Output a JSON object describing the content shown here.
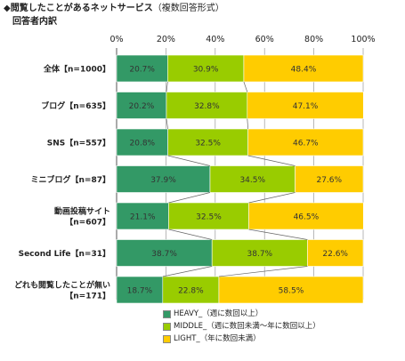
{
  "title": "閲覧したことがあるネットサービス",
  "title_note": "（複数回答形式）",
  "title_marker": "◆",
  "subtitle": "回答者内訳",
  "colors": {
    "heavy": "#339966",
    "middle": "#99cc00",
    "light": "#ffcc00",
    "grid": "#999999",
    "text_on_bar": "#333333"
  },
  "chart_data": {
    "type": "bar",
    "orientation": "horizontal",
    "stacked": true,
    "percent": true,
    "xlim": [
      0,
      100
    ],
    "xticks": [
      "0%",
      "20%",
      "40%",
      "60%",
      "80%",
      "100%"
    ],
    "categories": [
      [
        "全体【n=1000】"
      ],
      [
        "ブログ【n=635】"
      ],
      [
        "SNS【n=557】"
      ],
      [
        "ミニブログ【n=87】"
      ],
      [
        "動画投稿サイト",
        "【n=607】"
      ],
      [
        "Second Life【n=31】"
      ],
      [
        "どれも閲覧したことが無い",
        "【n=171】"
      ]
    ],
    "series": [
      {
        "name": "HEAVY_（週に数回以上）",
        "values": [
          20.7,
          20.2,
          20.8,
          37.9,
          21.1,
          38.7,
          18.7
        ]
      },
      {
        "name": "MIDDLE_（週に数回未満～年に数回以上）",
        "values": [
          30.9,
          32.8,
          32.5,
          34.5,
          32.5,
          38.7,
          22.8
        ]
      },
      {
        "name": "LIGHT_（年に数回未満）",
        "values": [
          48.4,
          47.1,
          46.7,
          27.6,
          46.5,
          22.6,
          58.5
        ]
      }
    ],
    "legend_position": "bottom",
    "grid": true,
    "connector_lines": true
  }
}
